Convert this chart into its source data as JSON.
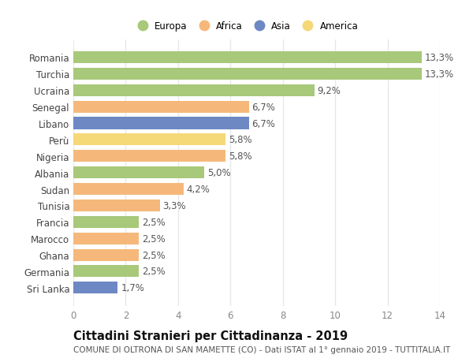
{
  "countries": [
    "Romania",
    "Turchia",
    "Ucraina",
    "Senegal",
    "Libano",
    "Perù",
    "Nigeria",
    "Albania",
    "Sudan",
    "Tunisia",
    "Francia",
    "Marocco",
    "Ghana",
    "Germania",
    "Sri Lanka"
  ],
  "values": [
    13.3,
    13.3,
    9.2,
    6.7,
    6.7,
    5.8,
    5.8,
    5.0,
    4.2,
    3.3,
    2.5,
    2.5,
    2.5,
    2.5,
    1.7
  ],
  "labels": [
    "13,3%",
    "13,3%",
    "9,2%",
    "6,7%",
    "6,7%",
    "5,8%",
    "5,8%",
    "5,0%",
    "4,2%",
    "3,3%",
    "2,5%",
    "2,5%",
    "2,5%",
    "2,5%",
    "1,7%"
  ],
  "continents": [
    "Europa",
    "Europa",
    "Europa",
    "Africa",
    "Asia",
    "America",
    "Africa",
    "Europa",
    "Africa",
    "Africa",
    "Europa",
    "Africa",
    "Africa",
    "Europa",
    "Asia"
  ],
  "continent_colors": {
    "Europa": "#a8c87a",
    "Africa": "#f5b87a",
    "Asia": "#6e88c4",
    "America": "#f5d878"
  },
  "legend_order": [
    "Europa",
    "Africa",
    "Asia",
    "America"
  ],
  "xlim": [
    0,
    14
  ],
  "xticks": [
    0,
    2,
    4,
    6,
    8,
    10,
    12,
    14
  ],
  "title": "Cittadini Stranieri per Cittadinanza - 2019",
  "subtitle": "COMUNE DI OLTRONA DI SAN MAMETTE (CO) - Dati ISTAT al 1° gennaio 2019 - TUTTITALIA.IT",
  "bg_color": "#ffffff",
  "grid_color": "#e8e8e8",
  "label_fontsize": 8.5,
  "title_fontsize": 10.5,
  "subtitle_fontsize": 7.5,
  "bar_height": 0.72
}
